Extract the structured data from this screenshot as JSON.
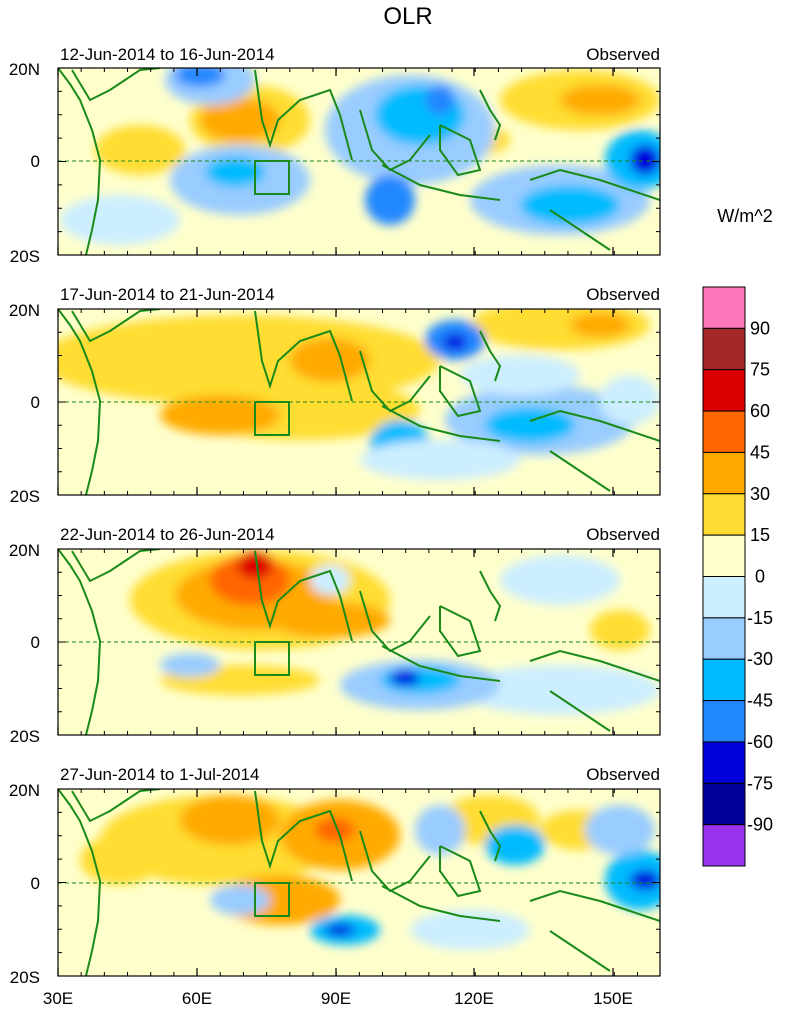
{
  "title": "OLR",
  "panels": [
    {
      "date_range": "12-Jun-2014 to 16-Jun-2014",
      "label": "Observed"
    },
    {
      "date_range": "17-Jun-2014 to 21-Jun-2014",
      "label": "Observed"
    },
    {
      "date_range": "22-Jun-2014 to 26-Jun-2014",
      "label": "Observed"
    },
    {
      "date_range": "27-Jun-2014 to 1-Jul-2014",
      "label": "Observed"
    }
  ],
  "y_ticks": [
    "20N",
    "0",
    "20S"
  ],
  "x_ticks": [
    "30E",
    "60E",
    "90E",
    "120E",
    "150E"
  ],
  "colorbar": {
    "units": "W/m^2",
    "labels": [
      "90",
      "75",
      "60",
      "45",
      "30",
      "15",
      "0",
      "-15",
      "-30",
      "-45",
      "-60",
      "-75",
      "-90"
    ],
    "colors": [
      "#ff77bb",
      "#a52828",
      "#dd0000",
      "#ff6600",
      "#ffaa00",
      "#ffdd33",
      "#ffffcc",
      "#cceeff",
      "#99ccff",
      "#00bbff",
      "#2288ff",
      "#0000dd",
      "#000099",
      "#9933ee"
    ]
  },
  "map": {
    "coast_color": "#1a8a1a",
    "equator_color": "#1a8a1a",
    "box_region": "73E-80E, 0-7S"
  }
}
